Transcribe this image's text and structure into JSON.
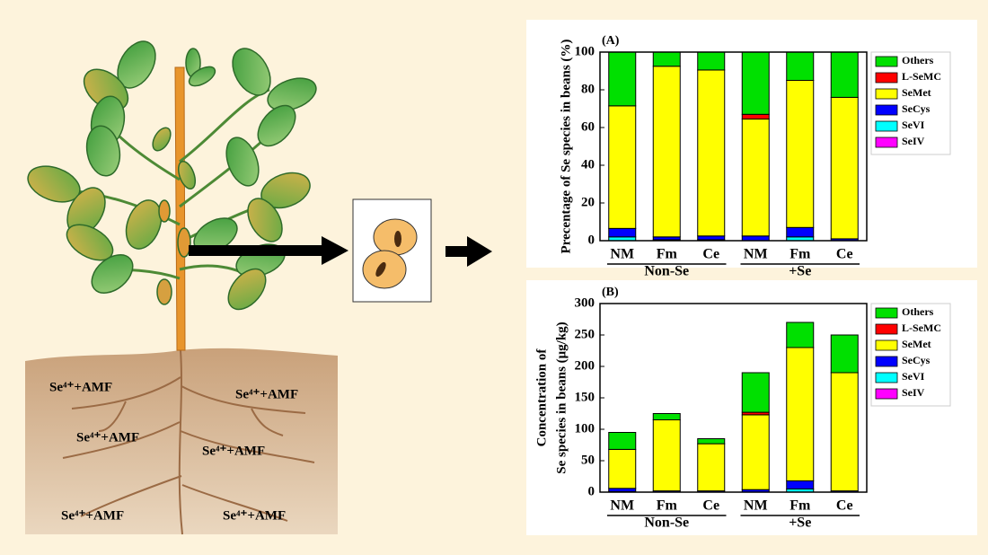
{
  "chart_data": [
    {
      "type": "stacked_bar",
      "panel_label": "(A)",
      "ylabel": [
        "Precentage of Se species in beans (%)"
      ],
      "categories": [
        "NM",
        "Fm",
        "Ce",
        "NM",
        "Fm",
        "Ce"
      ],
      "groups": [
        "Non-Se",
        "+Se"
      ],
      "series": [
        {
          "name": "SeIV",
          "color": "#ff00ff",
          "values": [
            0,
            0,
            0,
            0,
            0,
            0
          ]
        },
        {
          "name": "SeVI",
          "color": "#00ffff",
          "values": [
            2,
            0.5,
            0.5,
            0,
            2,
            0
          ]
        },
        {
          "name": "SeCys",
          "color": "#0000ff",
          "values": [
            4.5,
            1.5,
            2,
            2.5,
            5,
            1
          ]
        },
        {
          "name": "SeMet",
          "color": "#ffff00",
          "values": [
            65,
            90.5,
            88,
            62,
            78,
            75
          ]
        },
        {
          "name": "L-SeMC",
          "color": "#ff0000",
          "values": [
            0,
            0,
            0,
            2.5,
            0,
            0
          ]
        },
        {
          "name": "Others",
          "color": "#00e000",
          "values": [
            28.5,
            7.5,
            9.5,
            33,
            15,
            24
          ]
        }
      ],
      "ylim": [
        0,
        100
      ],
      "yticks": [
        0,
        20,
        40,
        60,
        80,
        100
      ]
    },
    {
      "type": "stacked_bar",
      "panel_label": "(B)",
      "ylabel": [
        "Concentration of",
        "Se species in beans (μg/kg)"
      ],
      "categories": [
        "NM",
        "Fm",
        "Ce",
        "NM",
        "Fm",
        "Ce"
      ],
      "groups": [
        "Non-Se",
        "+Se"
      ],
      "series": [
        {
          "name": "SeIV",
          "color": "#ff00ff",
          "values": [
            0,
            0,
            0,
            0,
            0,
            0
          ]
        },
        {
          "name": "SeVI",
          "color": "#00ffff",
          "values": [
            1,
            0,
            0,
            0,
            5,
            0
          ]
        },
        {
          "name": "SeCys",
          "color": "#0000ff",
          "values": [
            5,
            2,
            2,
            4,
            13,
            2
          ]
        },
        {
          "name": "SeMet",
          "color": "#ffff00",
          "values": [
            62,
            113,
            75,
            119,
            212,
            188
          ]
        },
        {
          "name": "L-SeMC",
          "color": "#ff0000",
          "values": [
            0,
            0,
            0,
            4,
            0,
            0
          ]
        },
        {
          "name": "Others",
          "color": "#00e000",
          "values": [
            27,
            10,
            8,
            63,
            40,
            60
          ]
        }
      ],
      "ylim": [
        0,
        300
      ],
      "yticks": [
        0,
        50,
        100,
        150,
        200,
        250,
        300
      ]
    }
  ],
  "illustration": {
    "soil_labels": [
      "Se⁴⁺+AMF",
      "Se⁴⁺+AMF",
      "Se⁴⁺+AMF",
      "Se⁴⁺+AMF",
      "Se⁴⁺+AMF",
      "Se⁴⁺+AMF"
    ]
  }
}
